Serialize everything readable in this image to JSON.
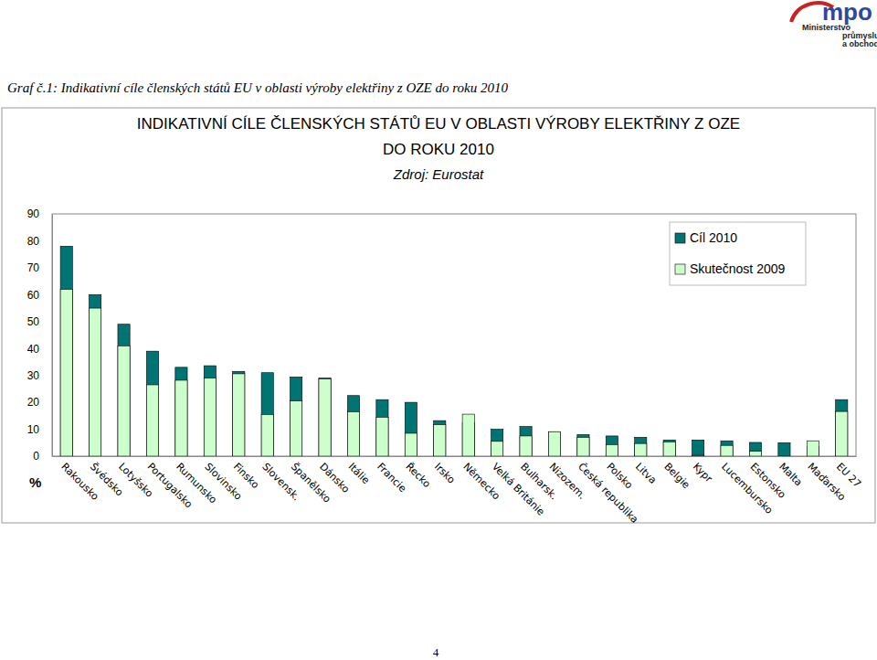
{
  "page": {
    "caption": "Graf č.1: Indikativní cíle členských států EU v oblasti výroby elektřiny z OZE do roku 2010",
    "page_number": "4",
    "logo": [
      "mpo",
      "Ministerstvo",
      "průmyslu",
      "a obchodu"
    ]
  },
  "chart_data": {
    "type": "bar",
    "title": "INDIKATIVNÍ CÍLE ČLENSKÝCH STÁTŮ EU V OBLASTI VÝROBY ELEKTŘINY Z OZE\nDO ROKU 2010",
    "subtitle": "Zdroj: Eurostat",
    "y_label": "%",
    "categories": [
      "Rakousko",
      "Švédsko",
      "Lotyšsko",
      "Portugalsko",
      "Rumunsko",
      "Slovinsko",
      "Finsko",
      "Slovensk.",
      "Španělsko",
      "Dánsko",
      "Itálie",
      "Francie",
      "Řecko",
      "Irsko",
      "Německo",
      "Velká Británie",
      "Bulharsk.",
      "Nizozem.",
      "Česká republika",
      "Polsko",
      "Litva",
      "Belgie",
      "Kypr",
      "Lucembursko",
      "Estonsko",
      "Malta",
      "Maďarsko",
      "EU 27"
    ],
    "series": [
      {
        "name": "Cíl 2010",
        "color": "#007373",
        "values": [
          78,
          60,
          49,
          39,
          33,
          33.6,
          31.5,
          31,
          29.4,
          29,
          22.5,
          21,
          20,
          13.2,
          12.5,
          10,
          11,
          9,
          8,
          7.5,
          7,
          6,
          6,
          5.7,
          5.1,
          5,
          3.6,
          21
        ]
      },
      {
        "name": "Skutečnost 2009",
        "color": "#ccffcc",
        "values": [
          62,
          55,
          41,
          26.5,
          28.2,
          29,
          30.6,
          15.5,
          20.5,
          28.7,
          16.5,
          14.5,
          8.5,
          11.7,
          15.6,
          5.5,
          7.5,
          9.1,
          7,
          4.3,
          4.7,
          5.3,
          0.3,
          4,
          1.8,
          0,
          5.7,
          16.6
        ]
      }
    ],
    "ylim": [
      0,
      90
    ],
    "yticks": [
      0,
      10,
      20,
      30,
      40,
      50,
      60,
      70,
      80,
      90
    ],
    "grid": false,
    "legend": "top-right",
    "stacked": false
  }
}
